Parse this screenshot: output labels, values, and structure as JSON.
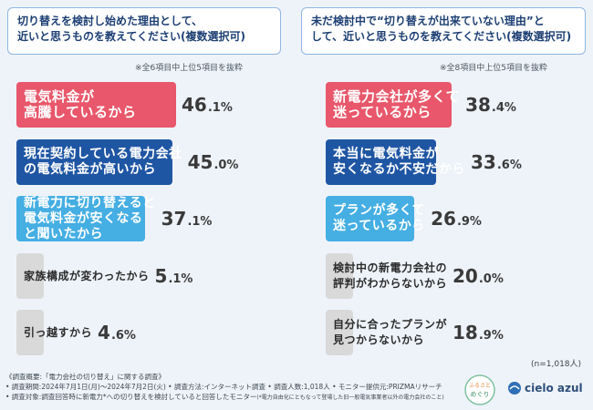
{
  "left": {
    "title_line1": "切り替えを検討し始めた理由として、",
    "title_line2": "近いと思うものを教えてください(複数選択可)",
    "note": "※全6項目中上位5項目を抜粋"
  },
  "right": {
    "title_line1": "未だ検討中で“切り替えが出来ていない理由”と",
    "title_line2": "して、近いと思うものを教えてください(複数選択可)",
    "note": "※全8項目中上位5項目を抜粋"
  },
  "sample": "(n=1,018人)",
  "footer": {
    "line1": "《調査概要:「電力会社の切り替え」に関する調査》",
    "line2": "• 調査期間:2024年7月1日(月)～2024年7月2日(火) • 調査方法:インターネット調査 • 調査人数:1,018人 • モニター提供元:PRIZMAリサーチ",
    "line3": "• 調査対象:調査回答時に新電力*への切り替えを検討していると回答したモニター",
    "line3_small": "(*電力自由化にともなって登場した旧一般電気事業者以外の電力会社のこと)"
  },
  "logos": {
    "furusato": "ふるさと めぐり",
    "brand": "cielo azul"
  },
  "chart_data": [
    {
      "type": "bar",
      "title": "切り替えを検討し始めた理由として、近いと思うものを教えてください(複数選択可)",
      "unit": "%",
      "bars": [
        {
          "label": "電気料金が\n高騰しているから",
          "value_int": "46",
          "value_dec": ".1",
          "value": 46.1,
          "color": "#e8576b"
        },
        {
          "label": "現在契約している電力会社\nの電気料金が高いから",
          "value_int": "45",
          "value_dec": ".0",
          "value": 45.0,
          "color": "#1f56a3"
        },
        {
          "label": "新電力に切り替えると\n電気料金が安くなる\nと聞いたから",
          "value_int": "37",
          "value_dec": ".1",
          "value": 37.1,
          "color": "#45aee3"
        },
        {
          "label": "家族構成が変わったから",
          "value_int": "5",
          "value_dec": ".1",
          "value": 5.1,
          "color": "#d9d9d9"
        },
        {
          "label": "引っ越すから",
          "value_int": "4",
          "value_dec": ".6",
          "value": 4.6,
          "color": "#d9d9d9"
        }
      ]
    },
    {
      "type": "bar",
      "title": "未だ検討中で“切り替えが出来ていない理由”として、近いと思うものを教えてください(複数選択可)",
      "unit": "%",
      "bars": [
        {
          "label": "新電力会社が多くて\n迷っているから",
          "value_int": "38",
          "value_dec": ".4",
          "value": 38.4,
          "color": "#e8576b"
        },
        {
          "label": "本当に電気料金が\n安くなるか不安だから",
          "value_int": "33",
          "value_dec": ".6",
          "value": 33.6,
          "color": "#1f56a3"
        },
        {
          "label": "プランが多くて\n迷っているから",
          "value_int": "26",
          "value_dec": ".9",
          "value": 26.9,
          "color": "#45aee3"
        },
        {
          "label": "検討中の新電力会社の\n評判がわからないから",
          "value_int": "20",
          "value_dec": ".0",
          "value": 20.0,
          "color": "#d9d9d9"
        },
        {
          "label": "自分に合ったプランが\n見つからないから",
          "value_int": "18",
          "value_dec": ".9",
          "value": 18.9,
          "color": "#d9d9d9"
        }
      ]
    }
  ]
}
